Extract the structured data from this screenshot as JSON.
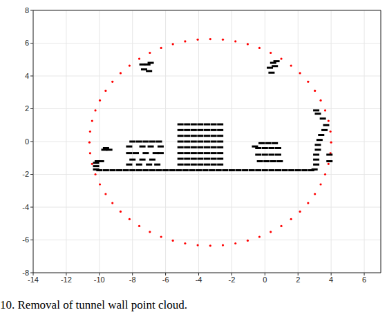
{
  "chart_data": {
    "type": "scatter",
    "caption": "10. Removal of tunnel wall point cloud.",
    "xlim": [
      -14,
      7
    ],
    "ylim": [
      -8,
      8
    ],
    "xticks": [
      -14,
      -12,
      -10,
      -8,
      -6,
      -4,
      -2,
      0,
      2,
      4,
      6
    ],
    "yticks": [
      -8,
      -6,
      -4,
      -2,
      0,
      2,
      4,
      6,
      8
    ],
    "grid": true,
    "series": [
      {
        "color": "#ff0000",
        "marker": "dot",
        "x": [
          4.0,
          3.96,
          3.84,
          3.64,
          3.37,
          3.02,
          2.61,
          2.12,
          1.58,
          0.99,
          0.35,
          -0.33,
          -1.04,
          -1.78,
          -2.54,
          -3.3,
          -4.06,
          -4.82,
          -5.56,
          -6.27,
          -6.95,
          -7.59,
          -8.18,
          -8.72,
          -9.21,
          -9.62,
          -9.97,
          -10.24,
          -10.44,
          -10.56,
          -10.6,
          -10.56,
          -10.44,
          -10.24,
          -9.97,
          -9.62,
          -9.21,
          -8.72,
          -8.18,
          -7.59,
          -6.95,
          -6.27,
          -5.56,
          -4.82,
          -4.06,
          -3.3,
          -2.54,
          -1.78,
          -1.04,
          -0.33,
          0.35,
          0.99,
          1.58,
          2.12,
          2.61,
          3.02,
          3.37,
          3.64,
          3.84,
          3.96
        ],
        "y": [
          -0.05,
          0.61,
          1.26,
          1.9,
          2.51,
          3.1,
          3.65,
          4.17,
          4.63,
          5.05,
          5.41,
          5.71,
          5.94,
          6.11,
          6.22,
          6.25,
          6.22,
          6.11,
          5.94,
          5.71,
          5.41,
          5.05,
          4.63,
          4.17,
          3.65,
          3.1,
          2.51,
          1.9,
          1.26,
          0.61,
          -0.05,
          -0.71,
          -1.36,
          -2.0,
          -2.61,
          -3.2,
          -3.75,
          -4.27,
          -4.73,
          -5.15,
          -5.51,
          -5.81,
          -6.04,
          -6.21,
          -6.32,
          -6.35,
          -6.32,
          -6.21,
          -6.04,
          -5.81,
          -5.51,
          -5.15,
          -4.73,
          -4.27,
          -3.75,
          -3.2,
          -2.61,
          -2.0,
          -1.36,
          -0.71
        ]
      },
      {
        "color": "#000000",
        "marker": "square",
        "x": [
          -10,
          -9.6,
          -9.2,
          -8.8,
          -8.4,
          -8,
          -7.6,
          -7.2,
          -6.8,
          -6.4,
          -6,
          -5.6,
          -5.2,
          -4.8,
          -4.4,
          -4,
          -3.6,
          -3.2,
          -2.8,
          -2.4,
          -2,
          -1.6,
          -1.2,
          -0.8,
          -0.4,
          0,
          0.4,
          0.8,
          1.2,
          1.6,
          2,
          2.4,
          2.8,
          -10.2,
          -10.2,
          -10.2,
          -10.1,
          -9.9,
          -9.7,
          -9.6,
          -9.4,
          3.0,
          3.1,
          3.1,
          3.1,
          3.2,
          3.2,
          3.3,
          3.4,
          3.6,
          3.7,
          3.9,
          3.9,
          3.5,
          3.2,
          3.1,
          -8.0,
          -7.6,
          -7.2,
          -6.8,
          -6.4,
          -8.2,
          -7.4,
          -6.9,
          -6.3,
          -8.2,
          -7.8,
          -7.2,
          -6.6,
          -6.3,
          -8.0,
          -7.4,
          -6.8,
          -8.2,
          -7.6,
          -7.0,
          -6.5,
          -5.1,
          -4.7,
          -4.3,
          -3.9,
          -3.5,
          -3.1,
          -2.7,
          -5.1,
          -4.7,
          -4.3,
          -3.9,
          -3.5,
          -3.1,
          -2.7,
          -5.1,
          -4.7,
          -4.3,
          -3.9,
          -3.5,
          -3.1,
          -2.7,
          -5.1,
          -4.7,
          -4.3,
          -3.9,
          -3.5,
          -3.1,
          -2.7,
          -5.1,
          -4.7,
          -4.3,
          -3.9,
          -3.5,
          -3.1,
          -2.7,
          -5.1,
          -4.7,
          -4.3,
          -3.9,
          -3.5,
          -3.1,
          -2.7,
          -5.1,
          -4.7,
          -4.3,
          -3.9,
          -3.5,
          -3.1,
          -2.7,
          -5.1,
          -4.7,
          -4.3,
          -3.9,
          -3.5,
          -3.1,
          -2.7,
          -0.2,
          0.2,
          0.6,
          -0.4,
          0,
          0.4,
          0.8,
          -0.4,
          0,
          0.4,
          0.8,
          -0.3,
          0.1,
          0.5,
          0.9,
          -0.6,
          -7.4,
          -7.1,
          -6.9,
          -7.3,
          -7.0,
          0.3,
          0.5,
          0.6,
          0.4,
          0.7
        ],
        "y": [
          -1.75,
          -1.75,
          -1.75,
          -1.75,
          -1.75,
          -1.75,
          -1.75,
          -1.75,
          -1.75,
          -1.75,
          -1.75,
          -1.75,
          -1.75,
          -1.75,
          -1.75,
          -1.75,
          -1.75,
          -1.75,
          -1.75,
          -1.75,
          -1.75,
          -1.75,
          -1.75,
          -1.75,
          -1.75,
          -1.75,
          -1.75,
          -1.75,
          -1.75,
          -1.75,
          -1.75,
          -1.75,
          -1.75,
          -1.7,
          -1.5,
          -1.3,
          -1.2,
          -1.2,
          -0.5,
          -0.4,
          -0.5,
          -1.7,
          -1.4,
          -1.1,
          -0.8,
          -0.5,
          -0.2,
          0.1,
          0.4,
          0.7,
          1.0,
          -0.8,
          -1.2,
          1.4,
          1.7,
          1.9,
          0.0,
          0.0,
          0.0,
          0.0,
          0.0,
          -0.3,
          -0.3,
          -0.3,
          -0.3,
          -0.7,
          -0.7,
          -0.7,
          -0.7,
          -0.7,
          -1.1,
          -1.1,
          -1.1,
          -1.4,
          -1.4,
          -1.4,
          -1.4,
          1.05,
          1.05,
          1.05,
          1.05,
          1.05,
          1.05,
          1.05,
          0.7,
          0.7,
          0.7,
          0.7,
          0.7,
          0.7,
          0.7,
          0.35,
          0.35,
          0.35,
          0.35,
          0.35,
          0.35,
          0.35,
          0.0,
          0.0,
          0.0,
          0.0,
          0.0,
          0.0,
          0.0,
          -0.35,
          -0.35,
          -0.35,
          -0.35,
          -0.35,
          -0.35,
          -0.35,
          -0.7,
          -0.7,
          -0.7,
          -0.7,
          -0.7,
          -0.7,
          -0.7,
          -1.05,
          -1.05,
          -1.05,
          -1.05,
          -1.05,
          -1.05,
          -1.05,
          -1.4,
          -1.4,
          -1.4,
          -1.4,
          -1.4,
          -1.4,
          -1.4,
          -0.1,
          -0.1,
          -0.1,
          -0.4,
          -0.4,
          -0.4,
          -0.4,
          -0.8,
          -0.8,
          -0.8,
          -0.8,
          -1.2,
          -1.2,
          -1.2,
          -1.2,
          -0.3,
          4.7,
          4.7,
          4.8,
          4.4,
          4.3,
          4.5,
          4.8,
          4.6,
          4.2,
          4.9
        ]
      }
    ]
  }
}
